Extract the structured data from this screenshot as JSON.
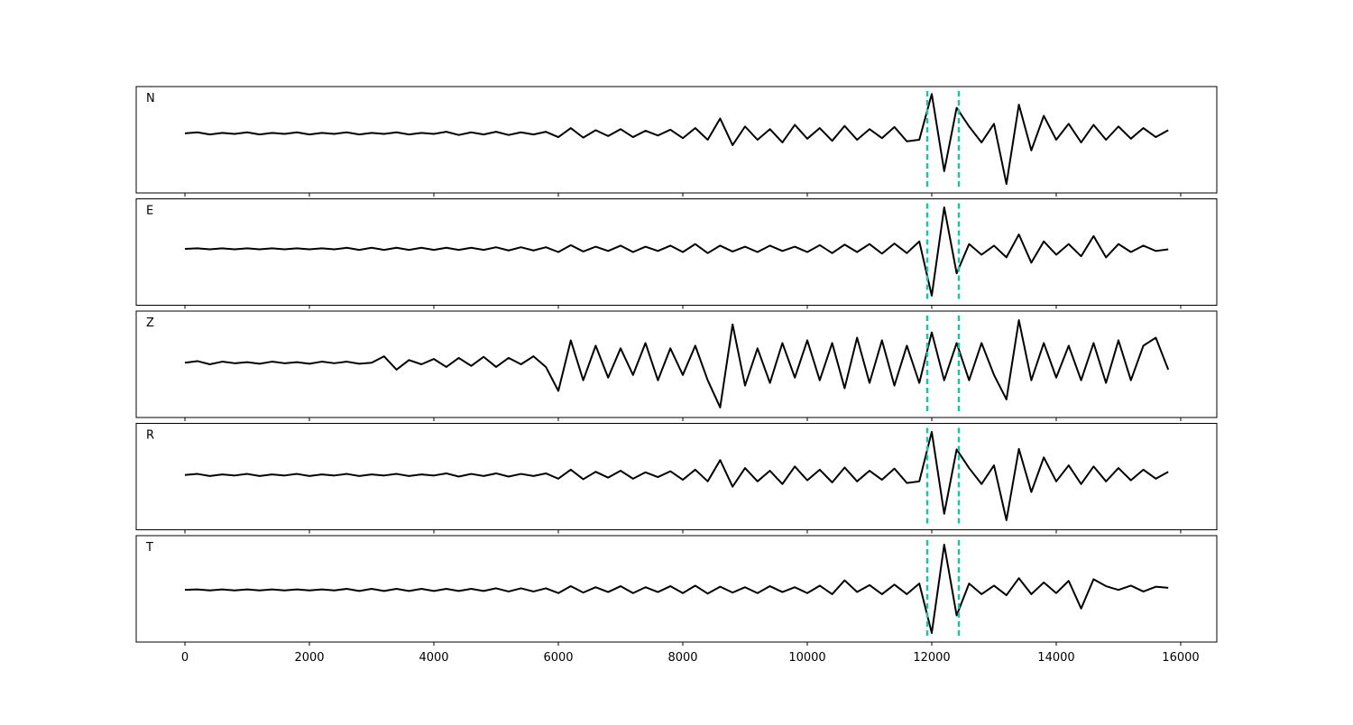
{
  "chart_data": [
    {
      "type": "line",
      "title": "N",
      "color": "#000000",
      "vline_color": "#17c3b2",
      "vlines": [
        11928,
        12435
      ],
      "xlim": [
        -783,
        16580
      ],
      "ylim": [
        -1,
        1
      ],
      "xticks": [
        0,
        2000,
        4000,
        6000,
        8000,
        10000,
        12000,
        14000,
        16000
      ],
      "grid": false,
      "x": [
        0,
        200,
        400,
        600,
        800,
        1000,
        1200,
        1400,
        1600,
        1800,
        2000,
        2200,
        2400,
        2600,
        2800,
        3000,
        3200,
        3400,
        3600,
        3800,
        4000,
        4200,
        4400,
        4600,
        4800,
        5000,
        5200,
        5400,
        5600,
        5800,
        6000,
        6200,
        6400,
        6600,
        6800,
        7000,
        7200,
        7400,
        7600,
        7800,
        8000,
        8200,
        8400,
        8600,
        8800,
        9000,
        9200,
        9400,
        9600,
        9800,
        10000,
        10200,
        10400,
        10600,
        10800,
        11000,
        11200,
        11400,
        11600,
        11800,
        12000,
        12200,
        12400,
        12600,
        12800,
        13000,
        13200,
        13400,
        13600,
        13800,
        14000,
        14200,
        14400,
        14600,
        14800,
        15000,
        15200,
        15400,
        15600,
        15800
      ],
      "values": [
        0.12,
        0.14,
        0.1,
        0.13,
        0.11,
        0.14,
        0.1,
        0.13,
        0.11,
        0.14,
        0.1,
        0.13,
        0.11,
        0.14,
        0.1,
        0.13,
        0.11,
        0.14,
        0.1,
        0.13,
        0.11,
        0.15,
        0.09,
        0.14,
        0.1,
        0.15,
        0.09,
        0.14,
        0.1,
        0.15,
        0.05,
        0.22,
        0.04,
        0.18,
        0.07,
        0.2,
        0.05,
        0.17,
        0.08,
        0.19,
        0.03,
        0.22,
        0.0,
        0.4,
        -0.1,
        0.25,
        0.0,
        0.2,
        -0.05,
        0.28,
        0.02,
        0.22,
        -0.02,
        0.26,
        0.0,
        0.2,
        0.03,
        0.24,
        -0.03,
        0.0,
        0.86,
        -0.59,
        0.6,
        0.25,
        -0.05,
        0.3,
        -0.83,
        0.66,
        -0.2,
        0.45,
        0.0,
        0.3,
        -0.05,
        0.28,
        0.0,
        0.25,
        0.02,
        0.22,
        0.05,
        0.18
      ]
    },
    {
      "type": "line",
      "title": "E",
      "color": "#000000",
      "vline_color": "#17c3b2",
      "vlines": [
        11928,
        12435
      ],
      "xlim": [
        -783,
        16580
      ],
      "ylim": [
        -1,
        1
      ],
      "xticks": [
        0,
        2000,
        4000,
        6000,
        8000,
        10000,
        12000,
        14000,
        16000
      ],
      "grid": false,
      "x": [
        0,
        200,
        400,
        600,
        800,
        1000,
        1200,
        1400,
        1600,
        1800,
        2000,
        2200,
        2400,
        2600,
        2800,
        3000,
        3200,
        3400,
        3600,
        3800,
        4000,
        4200,
        4400,
        4600,
        4800,
        5000,
        5200,
        5400,
        5600,
        5800,
        6000,
        6200,
        6400,
        6600,
        6800,
        7000,
        7200,
        7400,
        7600,
        7800,
        8000,
        8200,
        8400,
        8600,
        8800,
        9000,
        9200,
        9400,
        9600,
        9800,
        10000,
        10200,
        10400,
        10600,
        10800,
        11000,
        11200,
        11400,
        11600,
        11800,
        12000,
        12200,
        12400,
        12600,
        12800,
        13000,
        13200,
        13400,
        13600,
        13800,
        14000,
        14200,
        14400,
        14600,
        14800,
        15000,
        15200,
        15400,
        15600,
        15800
      ],
      "values": [
        0.06,
        0.07,
        0.05,
        0.07,
        0.05,
        0.07,
        0.05,
        0.07,
        0.05,
        0.07,
        0.05,
        0.07,
        0.05,
        0.08,
        0.04,
        0.08,
        0.04,
        0.08,
        0.04,
        0.08,
        0.04,
        0.08,
        0.04,
        0.08,
        0.04,
        0.09,
        0.03,
        0.09,
        0.03,
        0.09,
        0.0,
        0.13,
        0.01,
        0.1,
        0.02,
        0.12,
        0.0,
        0.1,
        0.02,
        0.12,
        0.0,
        0.15,
        -0.02,
        0.12,
        0.01,
        0.1,
        0.0,
        0.12,
        0.02,
        0.1,
        0.0,
        0.13,
        -0.02,
        0.14,
        0.0,
        0.15,
        -0.03,
        0.16,
        -0.02,
        0.2,
        -0.82,
        0.84,
        -0.4,
        0.15,
        -0.05,
        0.12,
        -0.1,
        0.33,
        -0.2,
        0.2,
        -0.05,
        0.15,
        -0.08,
        0.3,
        -0.1,
        0.15,
        0.0,
        0.12,
        0.02,
        0.05
      ]
    },
    {
      "type": "line",
      "title": "Z",
      "color": "#000000",
      "vline_color": "#17c3b2",
      "vlines": [
        11928,
        12435
      ],
      "xlim": [
        -783,
        16580
      ],
      "ylim": [
        -1,
        1
      ],
      "xticks": [
        0,
        2000,
        4000,
        6000,
        8000,
        10000,
        12000,
        14000,
        16000
      ],
      "grid": false,
      "x": [
        0,
        200,
        400,
        600,
        800,
        1000,
        1200,
        1400,
        1600,
        1800,
        2000,
        2200,
        2400,
        2600,
        2800,
        3000,
        3200,
        3400,
        3600,
        3800,
        4000,
        4200,
        4400,
        4600,
        4800,
        5000,
        5200,
        5400,
        5600,
        5800,
        6000,
        6200,
        6400,
        6600,
        6800,
        7000,
        7200,
        7400,
        7600,
        7800,
        8000,
        8200,
        8400,
        8600,
        8800,
        9000,
        9200,
        9400,
        9600,
        9800,
        10000,
        10200,
        10400,
        10600,
        10800,
        11000,
        11200,
        11400,
        11600,
        11800,
        12000,
        12200,
        12400,
        12600,
        12800,
        13000,
        13200,
        13400,
        13600,
        13800,
        14000,
        14200,
        14400,
        14600,
        14800,
        15000,
        15200,
        15400,
        15600,
        15800
      ],
      "values": [
        0.03,
        0.06,
        0.0,
        0.05,
        0.02,
        0.04,
        0.01,
        0.05,
        0.02,
        0.04,
        0.01,
        0.05,
        0.02,
        0.05,
        0.01,
        0.03,
        0.15,
        -0.1,
        0.08,
        0.0,
        0.1,
        -0.05,
        0.12,
        -0.03,
        0.14,
        -0.05,
        0.12,
        0.0,
        0.15,
        -0.05,
        -0.5,
        0.45,
        -0.3,
        0.35,
        -0.25,
        0.3,
        -0.2,
        0.4,
        -0.3,
        0.3,
        -0.2,
        0.35,
        -0.3,
        -0.81,
        0.75,
        -0.4,
        0.3,
        -0.35,
        0.4,
        -0.25,
        0.45,
        -0.3,
        0.4,
        -0.45,
        0.5,
        -0.35,
        0.45,
        -0.4,
        0.35,
        -0.35,
        0.6,
        -0.3,
        0.4,
        -0.3,
        0.4,
        -0.2,
        -0.66,
        0.83,
        -0.3,
        0.4,
        -0.25,
        0.35,
        -0.3,
        0.4,
        -0.35,
        0.45,
        -0.3,
        0.35,
        0.5,
        -0.1
      ]
    },
    {
      "type": "line",
      "title": "R",
      "color": "#000000",
      "vline_color": "#17c3b2",
      "vlines": [
        11928,
        12435
      ],
      "xlim": [
        -783,
        16580
      ],
      "ylim": [
        -1,
        1
      ],
      "xticks": [
        0,
        2000,
        4000,
        6000,
        8000,
        10000,
        12000,
        14000,
        16000
      ],
      "grid": false,
      "x": [
        0,
        200,
        400,
        600,
        800,
        1000,
        1200,
        1400,
        1600,
        1800,
        2000,
        2200,
        2400,
        2600,
        2800,
        3000,
        3200,
        3400,
        3600,
        3800,
        4000,
        4200,
        4400,
        4600,
        4800,
        5000,
        5200,
        5400,
        5600,
        5800,
        6000,
        6200,
        6400,
        6600,
        6800,
        7000,
        7200,
        7400,
        7600,
        7800,
        8000,
        8200,
        8400,
        8600,
        8800,
        9000,
        9200,
        9400,
        9600,
        9800,
        10000,
        10200,
        10400,
        10600,
        10800,
        11000,
        11200,
        11400,
        11600,
        11800,
        12000,
        12200,
        12400,
        12600,
        12800,
        13000,
        13200,
        13400,
        13600,
        13800,
        14000,
        14200,
        14400,
        14600,
        14800,
        15000,
        15200,
        15400,
        15600,
        15800
      ],
      "values": [
        0.03,
        0.05,
        0.01,
        0.04,
        0.02,
        0.05,
        0.01,
        0.04,
        0.02,
        0.05,
        0.01,
        0.04,
        0.02,
        0.05,
        0.01,
        0.04,
        0.02,
        0.05,
        0.01,
        0.04,
        0.02,
        0.06,
        0.0,
        0.05,
        0.01,
        0.06,
        0.0,
        0.05,
        0.01,
        0.06,
        -0.04,
        0.13,
        -0.05,
        0.09,
        -0.02,
        0.11,
        -0.04,
        0.08,
        -0.01,
        0.1,
        -0.06,
        0.13,
        -0.09,
        0.31,
        -0.19,
        0.16,
        -0.09,
        0.11,
        -0.14,
        0.19,
        -0.07,
        0.13,
        -0.11,
        0.17,
        -0.09,
        0.11,
        -0.06,
        0.15,
        -0.12,
        -0.09,
        0.84,
        -0.7,
        0.51,
        0.16,
        -0.14,
        0.21,
        -0.82,
        0.52,
        -0.29,
        0.36,
        -0.09,
        0.21,
        -0.14,
        0.19,
        -0.09,
        0.16,
        -0.07,
        0.13,
        -0.04,
        0.09
      ]
    },
    {
      "type": "line",
      "title": "T",
      "color": "#000000",
      "vline_color": "#17c3b2",
      "vlines": [
        11928,
        12435
      ],
      "xlim": [
        -783,
        16580
      ],
      "ylim": [
        -1,
        1
      ],
      "xticks": [
        0,
        2000,
        4000,
        6000,
        8000,
        10000,
        12000,
        14000,
        16000
      ],
      "grid": false,
      "x": [
        0,
        200,
        400,
        600,
        800,
        1000,
        1200,
        1400,
        1600,
        1800,
        2000,
        2200,
        2400,
        2600,
        2800,
        3000,
        3200,
        3400,
        3600,
        3800,
        4000,
        4200,
        4400,
        4600,
        4800,
        5000,
        5200,
        5400,
        5600,
        5800,
        6000,
        6200,
        6400,
        6600,
        6800,
        7000,
        7200,
        7400,
        7600,
        7800,
        8000,
        8200,
        8400,
        8600,
        8800,
        9000,
        9200,
        9400,
        9600,
        9800,
        10000,
        10200,
        10400,
        10600,
        10800,
        11000,
        11200,
        11400,
        11600,
        11800,
        12000,
        12200,
        12400,
        12600,
        12800,
        13000,
        13200,
        13400,
        13600,
        13800,
        14000,
        14200,
        14400,
        14600,
        14800,
        15000,
        15200,
        15400,
        15600,
        15800
      ],
      "values": [
        -0.02,
        -0.01,
        -0.03,
        -0.01,
        -0.03,
        -0.01,
        -0.03,
        -0.01,
        -0.03,
        -0.01,
        -0.03,
        -0.01,
        -0.03,
        0.0,
        -0.04,
        0.0,
        -0.04,
        0.0,
        -0.04,
        0.0,
        -0.04,
        0.0,
        -0.04,
        0.0,
        -0.04,
        0.01,
        -0.05,
        0.01,
        -0.05,
        0.01,
        -0.08,
        0.05,
        -0.07,
        0.03,
        -0.06,
        0.05,
        -0.08,
        0.03,
        -0.06,
        0.05,
        -0.08,
        0.06,
        -0.09,
        0.04,
        -0.07,
        0.03,
        -0.08,
        0.05,
        -0.06,
        0.03,
        -0.08,
        0.06,
        -0.1,
        0.16,
        -0.06,
        0.07,
        -0.1,
        0.08,
        -0.1,
        0.1,
        -0.83,
        0.83,
        -0.5,
        0.1,
        -0.1,
        0.06,
        -0.12,
        0.2,
        -0.1,
        0.12,
        -0.08,
        0.15,
        -0.37,
        0.18,
        0.05,
        -0.02,
        0.06,
        -0.05,
        0.04,
        0.02
      ]
    }
  ]
}
